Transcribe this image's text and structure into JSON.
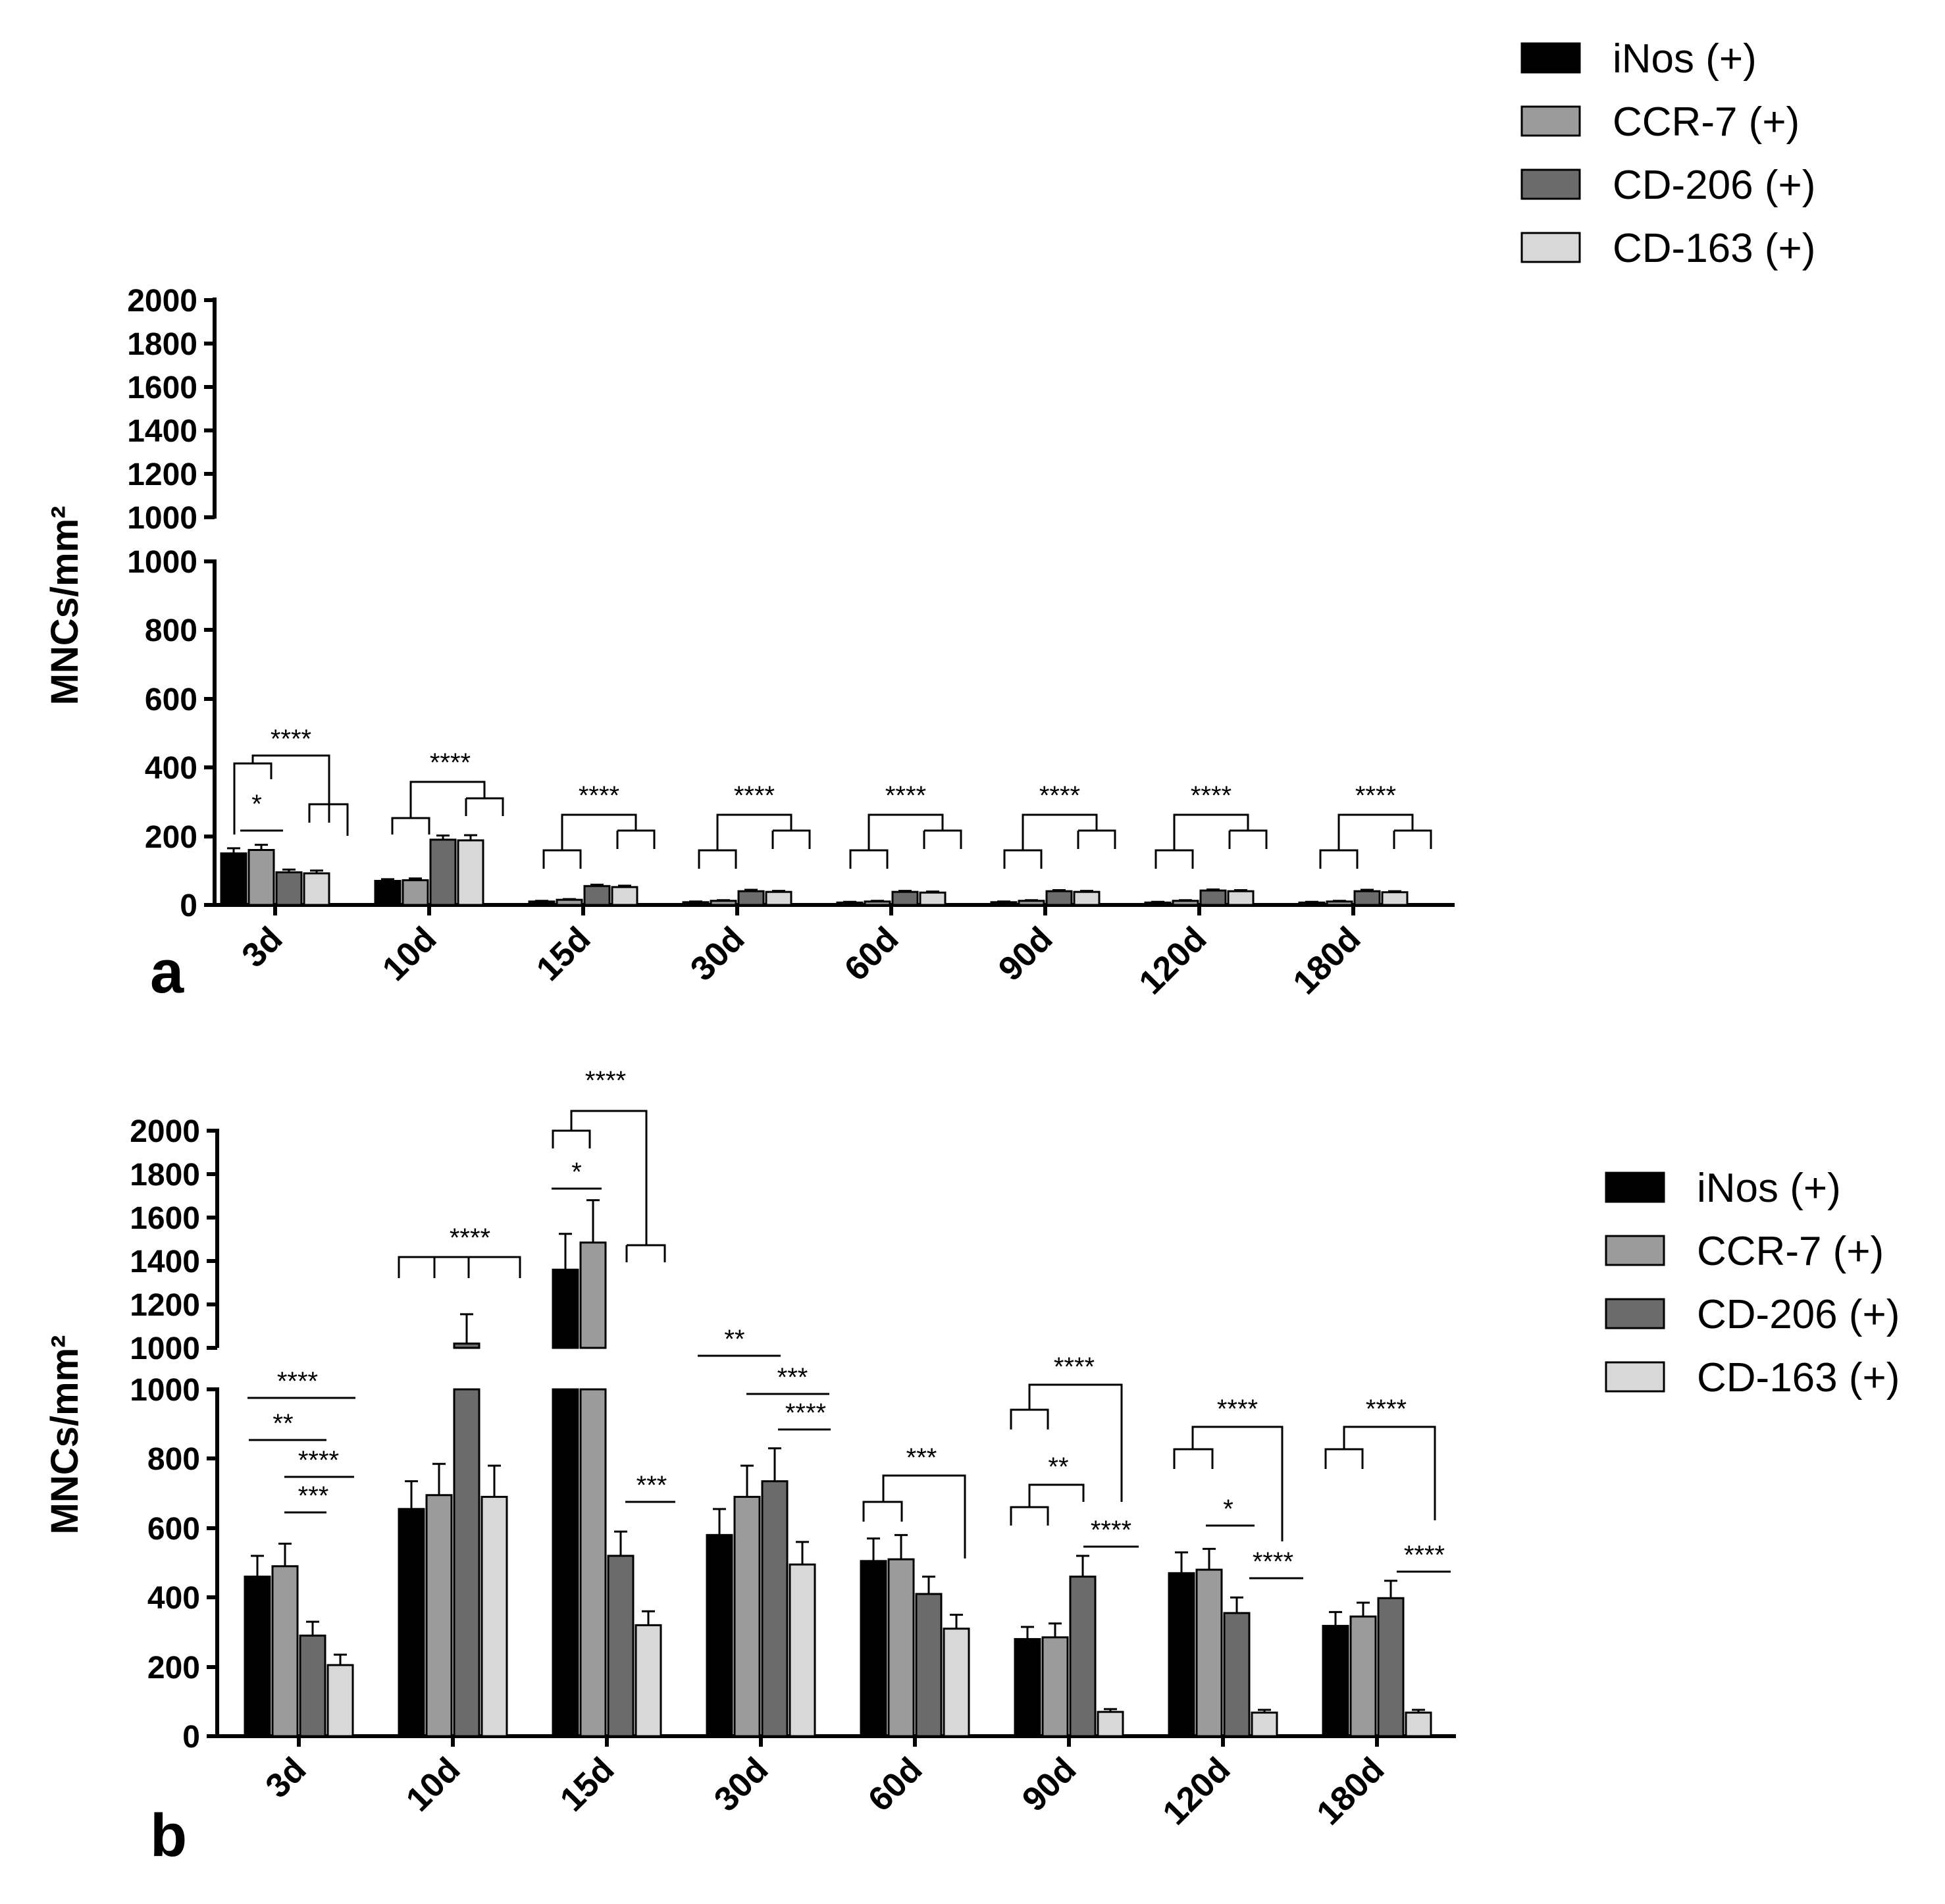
{
  "colors": {
    "iNos": "#000000",
    "CCR7": "#9b9b9b",
    "CD206": "#6b6b6b",
    "CD163": "#d8d8d8"
  },
  "chart_data": [
    {
      "panel": "a",
      "type": "bar",
      "ylabel": "MNCs/mm²",
      "categories": [
        "3d",
        "10d",
        "15d",
        "30d",
        "60d",
        "90d",
        "120d",
        "180d"
      ],
      "y_broken_axis": {
        "lower": [
          0,
          1000
        ],
        "lower_ticks": [
          "0",
          "200",
          "400",
          "600",
          "800",
          "1000"
        ],
        "upper": [
          1000,
          2000
        ],
        "upper_ticks": [
          "1000",
          "1200",
          "1400",
          "1600",
          "1800",
          "2000"
        ]
      },
      "legend": [
        "iNos (+)",
        "CCR-7 (+)",
        "CD-206 (+)",
        "CD-163 (+)"
      ],
      "series": [
        {
          "name": "iNos (+)",
          "color_key": "iNos",
          "values": [
            150,
            70,
            10,
            8,
            7,
            8,
            7,
            7
          ],
          "errors": [
            15,
            5,
            2,
            2,
            2,
            2,
            2,
            2
          ]
        },
        {
          "name": "CCR-7 (+)",
          "color_key": "CCR7",
          "values": [
            160,
            72,
            15,
            12,
            10,
            12,
            12,
            10
          ],
          "errors": [
            15,
            5,
            2,
            2,
            2,
            2,
            2,
            2
          ]
        },
        {
          "name": "CD-206 (+)",
          "color_key": "CD206",
          "values": [
            95,
            190,
            55,
            40,
            38,
            40,
            42,
            40
          ],
          "errors": [
            8,
            12,
            4,
            4,
            3,
            3,
            3,
            4
          ]
        },
        {
          "name": "CD-163 (+)",
          "color_key": "CD163",
          "values": [
            92,
            188,
            52,
            38,
            36,
            38,
            40,
            37
          ],
          "errors": [
            8,
            15,
            4,
            3,
            3,
            3,
            3,
            3
          ]
        }
      ],
      "significance": [
        "****",
        "*",
        "****",
        "****",
        "****",
        "****",
        "****",
        "****",
        "****"
      ]
    },
    {
      "panel": "b",
      "type": "bar",
      "ylabel": "MNCs/mm²",
      "categories": [
        "3d",
        "10d",
        "15d",
        "30d",
        "60d",
        "90d",
        "120d",
        "180d"
      ],
      "y_broken_axis": {
        "lower": [
          0,
          1000
        ],
        "lower_ticks": [
          "0",
          "200",
          "400",
          "600",
          "800",
          "1000"
        ],
        "upper": [
          1000,
          2000
        ],
        "upper_ticks": [
          "1000",
          "1200",
          "1400",
          "1600",
          "1800",
          "2000"
        ]
      },
      "legend": [
        "iNos (+)",
        "CCR-7 (+)",
        "CD-206 (+)",
        "CD-163 (+)"
      ],
      "series": [
        {
          "name": "iNos (+)",
          "color_key": "iNos",
          "values": [
            460,
            655,
            1360,
            580,
            505,
            280,
            470,
            318
          ],
          "errors": [
            60,
            80,
            165,
            75,
            65,
            35,
            60,
            40
          ]
        },
        {
          "name": "CCR-7 (+)",
          "color_key": "CCR7",
          "values": [
            490,
            695,
            1485,
            690,
            510,
            285,
            480,
            345
          ],
          "errors": [
            65,
            90,
            195,
            90,
            70,
            40,
            60,
            40
          ]
        },
        {
          "name": "CD-206 (+)",
          "color_key": "CD206",
          "values": [
            290,
            1020,
            520,
            735,
            410,
            460,
            355,
            398
          ],
          "errors": [
            40,
            135,
            70,
            95,
            50,
            60,
            45,
            50
          ]
        },
        {
          "name": "CD-163 (+)",
          "color_key": "CD163",
          "values": [
            205,
            690,
            320,
            495,
            310,
            70,
            68,
            68
          ],
          "errors": [
            30,
            90,
            40,
            65,
            40,
            8,
            8,
            8
          ]
        }
      ],
      "significance": [
        "****",
        "**",
        "****",
        "***",
        "****",
        "*",
        "****",
        "***",
        "**",
        "***",
        "****",
        "***",
        "****",
        "**",
        "****",
        "****",
        "*",
        "****",
        "****",
        "****"
      ]
    }
  ]
}
